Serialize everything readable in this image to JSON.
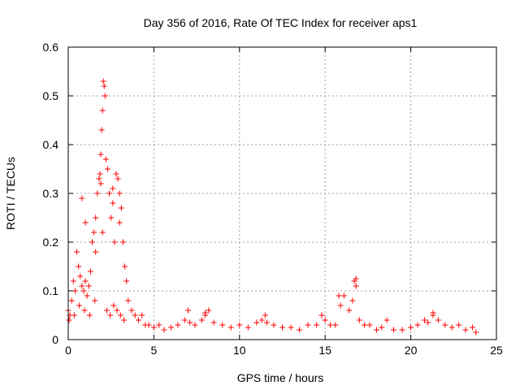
{
  "chart_data": {
    "type": "scatter",
    "title": "Day 356 of 2016, Rate Of TEC Index for receiver aps1",
    "xlabel": "GPS time / hours",
    "ylabel": "ROTI / TECUs",
    "xlim": [
      0,
      25
    ],
    "ylim": [
      0,
      0.6
    ],
    "xticks": [
      0,
      5,
      10,
      15,
      20,
      25
    ],
    "yticks": [
      0,
      0.1,
      0.2,
      0.3,
      0.4,
      0.5,
      0.6
    ],
    "xtick_labels": [
      "0",
      "5",
      "10",
      "15",
      "20",
      "25"
    ],
    "ytick_labels": [
      "0",
      "0.1",
      "0.2",
      "0.3",
      "0.4",
      "0.5",
      "0.6"
    ],
    "grid": true,
    "marker": "+",
    "color": "#ff0000",
    "series": [
      {
        "name": "aps1",
        "x": [
          0.0,
          0.1,
          0.2,
          0.3,
          0.4,
          0.5,
          0.6,
          0.7,
          0.8,
          0.9,
          1.0,
          1.1,
          1.2,
          1.3,
          1.4,
          1.5,
          1.6,
          1.7,
          1.8,
          1.85,
          1.9,
          1.95,
          2.0,
          2.05,
          2.1,
          2.15,
          2.2,
          2.3,
          2.4,
          2.5,
          2.6,
          2.7,
          2.8,
          2.9,
          3.0,
          3.1,
          3.2,
          3.3,
          3.4,
          3.5,
          3.7,
          3.9,
          4.1,
          4.3,
          4.5,
          4.7,
          5.0,
          5.3,
          5.6,
          6.0,
          6.4,
          6.8,
          7.1,
          7.4,
          7.8,
          8.0,
          8.2,
          8.5,
          9.0,
          9.5,
          10.0,
          10.5,
          11.0,
          11.3,
          11.6,
          12.0,
          12.5,
          13.0,
          13.5,
          14.0,
          14.5,
          14.8,
          15.0,
          15.3,
          15.6,
          15.9,
          16.1,
          16.4,
          16.7,
          16.8,
          17.0,
          17.3,
          17.6,
          18.0,
          18.3,
          18.6,
          19.0,
          19.5,
          20.0,
          20.4,
          20.8,
          21.0,
          21.3,
          21.6,
          22.0,
          22.4,
          22.8,
          23.2,
          23.6,
          23.8,
          0.05,
          0.35,
          0.65,
          0.95,
          1.25,
          1.55,
          2.25,
          2.45,
          2.65,
          2.85,
          3.05,
          3.25,
          0.8,
          1.0,
          1.6,
          1.9,
          2.0,
          2.6,
          2.8,
          3.0,
          16.8,
          15.8,
          16.6,
          8.0,
          7.0,
          21.3,
          11.5
        ],
        "y": [
          0.06,
          0.05,
          0.08,
          0.12,
          0.1,
          0.18,
          0.15,
          0.13,
          0.11,
          0.1,
          0.12,
          0.09,
          0.11,
          0.14,
          0.2,
          0.22,
          0.25,
          0.3,
          0.33,
          0.34,
          0.38,
          0.43,
          0.47,
          0.53,
          0.52,
          0.5,
          0.37,
          0.35,
          0.3,
          0.25,
          0.28,
          0.2,
          0.34,
          0.33,
          0.3,
          0.27,
          0.2,
          0.15,
          0.12,
          0.08,
          0.06,
          0.05,
          0.04,
          0.05,
          0.03,
          0.03,
          0.025,
          0.03,
          0.02,
          0.025,
          0.03,
          0.04,
          0.035,
          0.03,
          0.04,
          0.05,
          0.06,
          0.035,
          0.03,
          0.025,
          0.03,
          0.025,
          0.035,
          0.04,
          0.035,
          0.03,
          0.025,
          0.025,
          0.02,
          0.03,
          0.03,
          0.05,
          0.04,
          0.03,
          0.03,
          0.07,
          0.09,
          0.06,
          0.12,
          0.11,
          0.04,
          0.03,
          0.03,
          0.02,
          0.025,
          0.04,
          0.02,
          0.02,
          0.025,
          0.03,
          0.04,
          0.035,
          0.05,
          0.04,
          0.03,
          0.025,
          0.03,
          0.02,
          0.025,
          0.015,
          0.04,
          0.05,
          0.07,
          0.06,
          0.05,
          0.08,
          0.06,
          0.05,
          0.07,
          0.06,
          0.05,
          0.04,
          0.29,
          0.24,
          0.18,
          0.32,
          0.22,
          0.31,
          0.34,
          0.24,
          0.125,
          0.09,
          0.08,
          0.055,
          0.06,
          0.055,
          0.05
        ]
      }
    ]
  }
}
